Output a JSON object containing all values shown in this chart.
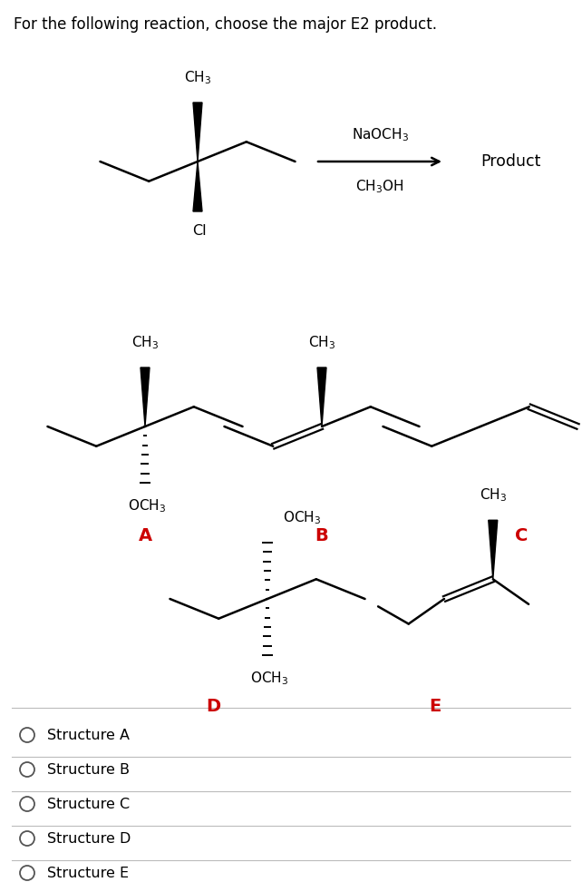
{
  "title": "For the following reaction, choose the major E2 product.",
  "title_fontsize": 12,
  "reagent_line1": "NaOCH₃",
  "reagent_line2": "CH₃OH",
  "product_text": "Product",
  "label_A": "A",
  "label_B": "B",
  "label_C": "C",
  "label_D": "D",
  "label_E": "E",
  "label_color": "#cc0000",
  "choices": [
    "Structure A",
    "Structure B",
    "Structure C",
    "Structure D",
    "Structure E"
  ],
  "background_color": "#ffffff",
  "text_color": "#000000",
  "bond_color": "#000000"
}
